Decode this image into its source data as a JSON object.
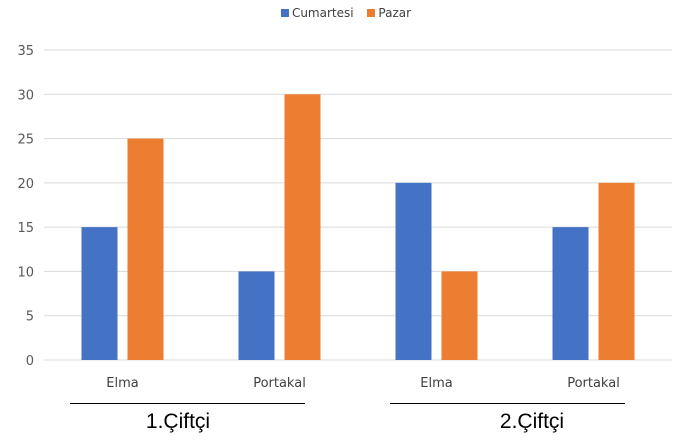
{
  "colors": {
    "series1": "#4472C4",
    "series2": "#ED7D31",
    "grid": "#d9d9d9",
    "axis_text": "#595959"
  },
  "chart_data": {
    "type": "bar",
    "legend_position": "top",
    "grid": true,
    "ylim": [
      0,
      35
    ],
    "yticks": [
      0,
      5,
      10,
      15,
      20,
      25,
      30,
      35
    ],
    "groups": [
      {
        "label": "1.Çiftçi",
        "categories": [
          "Elma",
          "Portakal"
        ]
      },
      {
        "label": "2.Çiftçi",
        "categories": [
          "Elma",
          "Portakal"
        ]
      }
    ],
    "categories": [
      "Elma",
      "Portakal",
      "Elma",
      "Portakal"
    ],
    "series": [
      {
        "name": "Cumartesi",
        "values": [
          15,
          10,
          20,
          15
        ]
      },
      {
        "name": "Pazar",
        "values": [
          25,
          30,
          10,
          20
        ]
      }
    ]
  }
}
